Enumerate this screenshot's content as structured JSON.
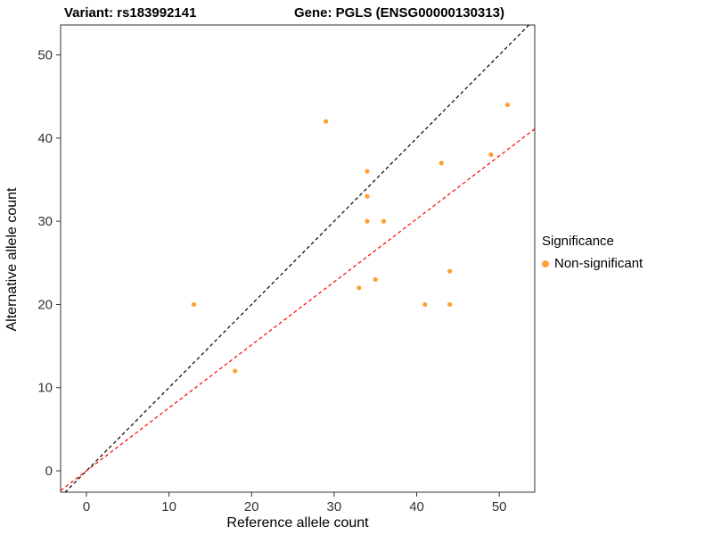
{
  "titles": {
    "variant": "Variant: rs183992141",
    "gene": "Gene: PGLS (ENSG00000130313)"
  },
  "chart_data": {
    "type": "scatter",
    "xlabel": "Reference allele count",
    "ylabel": "Alternative allele count",
    "xlim": [
      -3.13,
      54.3
    ],
    "ylim": [
      -2.57,
      53.6
    ],
    "xticks": [
      0,
      10,
      20,
      30,
      40,
      50
    ],
    "yticks": [
      0,
      10,
      20,
      30,
      40,
      50
    ],
    "grid": false,
    "panel_border_color": "#333333",
    "point_color": "#FFA033",
    "point_radius": 2.6,
    "points": [
      [
        13,
        20
      ],
      [
        18,
        12
      ],
      [
        29,
        42
      ],
      [
        34,
        36
      ],
      [
        34,
        33
      ],
      [
        34,
        30
      ],
      [
        36,
        30
      ],
      [
        33,
        22
      ],
      [
        35,
        23
      ],
      [
        41,
        20
      ],
      [
        43,
        37
      ],
      [
        44,
        24
      ],
      [
        44,
        20
      ],
      [
        49,
        38
      ],
      [
        51,
        44
      ]
    ],
    "lines": [
      {
        "name": "identity-line",
        "slope": 1,
        "intercept": 0,
        "color": "#000000",
        "style": "dashed"
      },
      {
        "name": "fit-line",
        "slope": 0.757,
        "intercept": 0,
        "color": "#FF0000",
        "style": "dashed"
      }
    ],
    "legend": {
      "position": "right",
      "title": "Significance",
      "items": [
        {
          "label": "Non-significant",
          "color": "#FFA033"
        }
      ]
    }
  }
}
